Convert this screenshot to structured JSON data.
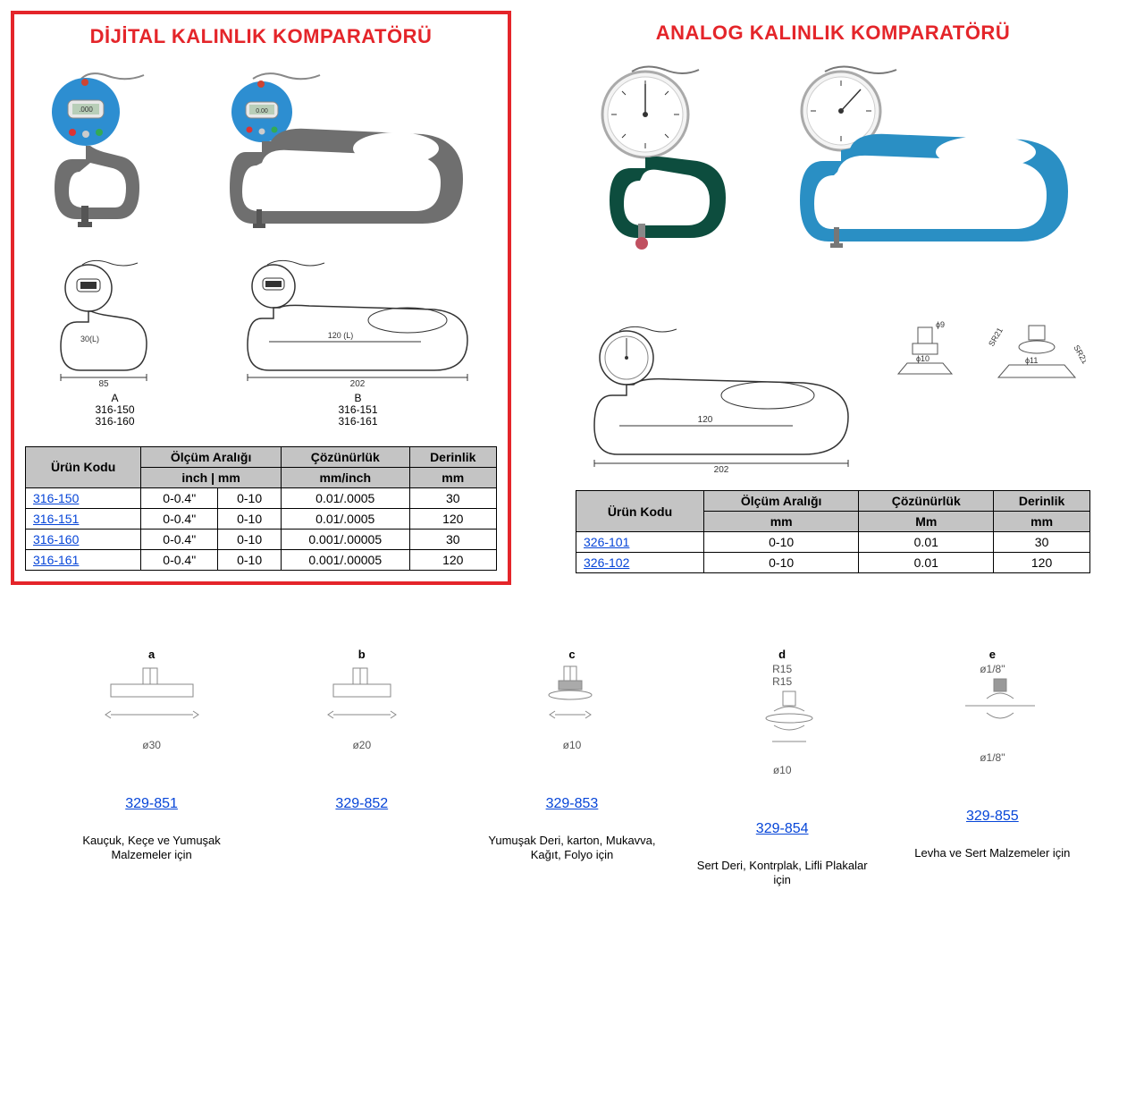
{
  "colors": {
    "accent_red": "#e4252a",
    "link_blue": "#0645d8",
    "table_header_bg": "#c4c4c4",
    "border": "#000000",
    "bg": "#ffffff",
    "digital_gauge_body": "#2d8ed1",
    "digital_frame": "#6f6f6f",
    "analog_small_frame": "#0d4d3e",
    "analog_large_frame": "#2a8fc4",
    "diagram_line": "#555555"
  },
  "typography": {
    "title_fontsize_pt": 17,
    "body_fontsize_pt": 10,
    "font_family": "Arial"
  },
  "left": {
    "title": "DİJİTAL KALINLIK KOMPARATÖRÜ",
    "dim_a": {
      "throat_label": "30(L)",
      "width": "85",
      "model_lines": [
        "316-150",
        "316-160"
      ],
      "letter": "A"
    },
    "dim_b": {
      "throat_label": "120 (L)",
      "width": "202",
      "model_lines": [
        "316-151",
        "316-161"
      ],
      "letter": "B"
    },
    "table": {
      "headers": {
        "code": "Ürün Kodu",
        "range": "Ölçüm Aralığı",
        "range_sub": "inch | mm",
        "res": "Çözünürlük",
        "res_sub": "mm/inch",
        "depth": "Derinlik",
        "depth_sub": "mm"
      },
      "rows": [
        {
          "code": "316-150",
          "inch": "0-0.4\"",
          "mm": "0-10",
          "res": "0.01/.0005",
          "depth": "30"
        },
        {
          "code": "316-151",
          "inch": "0-0.4\"",
          "mm": "0-10",
          "res": "0.01/.0005",
          "depth": "120"
        },
        {
          "code": "316-160",
          "inch": "0-0.4\"",
          "mm": "0-10",
          "res": "0.001/.00005",
          "depth": "30"
        },
        {
          "code": "316-161",
          "inch": "0-0.4\"",
          "mm": "0-10",
          "res": "0.001/.00005",
          "depth": "120"
        }
      ]
    }
  },
  "right": {
    "title": "ANALOG KALINLIK KOMPARATÖRÜ",
    "dim": {
      "throat_label": "120",
      "width": "202"
    },
    "anvil_dims": {
      "d1": "ϕ9",
      "d2": "ϕ10",
      "d3": "ϕ11",
      "r1": "SR21",
      "r2": "SR21"
    },
    "table": {
      "headers": {
        "code": "Ürün Kodu",
        "range": "Ölçüm Aralığı",
        "range_sub": "mm",
        "res": "Çözünürlük",
        "res_sub": "Mm",
        "depth": "Derinlik",
        "depth_sub": "mm"
      },
      "rows": [
        {
          "code": "326-101",
          "mm": "0-10",
          "res": "0.01",
          "depth": "30"
        },
        {
          "code": "326-102",
          "mm": "0-10",
          "res": "0.01",
          "depth": "120"
        }
      ]
    }
  },
  "tips": [
    {
      "letter": "a",
      "dim": "ø30",
      "code": "329-851",
      "desc": "Kauçuk, Keçe ve Yumuşak Malzemeler için"
    },
    {
      "letter": "b",
      "dim": "ø20",
      "code": "329-852",
      "desc": ""
    },
    {
      "letter": "c",
      "dim": "ø10",
      "code": "329-853",
      "desc": "Yumuşak Deri, karton, Mukavva, Kağıt, Folyo için"
    },
    {
      "letter": "d",
      "dim": "ø10",
      "dim2": "R15",
      "dim3": "R15",
      "code": "329-854",
      "desc": "Sert Deri, Kontrplak, Lifli Plakalar için"
    },
    {
      "letter": "e",
      "dim": "ø1/8\"",
      "dim2": "ø1/8\"",
      "code": "329-855",
      "desc": "Levha ve Sert Malzemeler için"
    }
  ]
}
